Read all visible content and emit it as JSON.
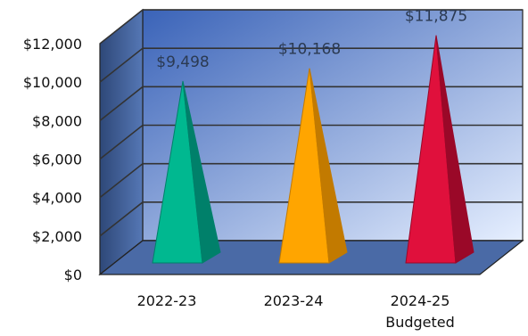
{
  "chart_data": {
    "type": "bar",
    "style": "3d-pyramid",
    "title": "",
    "xlabel": "",
    "ylabel": "",
    "categories": [
      [
        "2022-23"
      ],
      [
        "2023-24"
      ],
      [
        "2024-25",
        "Budgeted"
      ]
    ],
    "values": [
      9498,
      10168,
      11875
    ],
    "data_labels": [
      "$9,498",
      "$10,168",
      "$11,875"
    ],
    "ylim": [
      0,
      12000
    ],
    "yticks": [
      0,
      2000,
      4000,
      6000,
      8000,
      10000,
      12000
    ],
    "ytick_labels": [
      "$0",
      "$2,000",
      "$4,000",
      "$6,000",
      "$8,000",
      "$10,000",
      "$12,000"
    ],
    "grid": true,
    "colors": {
      "bars": [
        "#00b890",
        "#ffa500",
        "#e0103c"
      ],
      "bars_dark": [
        "#00806a",
        "#c27a00",
        "#9a0828"
      ],
      "back_wall_dark": "#3a63b8",
      "back_wall_light": "#e6efff",
      "side_wall": "#3f5f96",
      "floor": "#4a6aa6",
      "gridline": "#333333"
    }
  }
}
